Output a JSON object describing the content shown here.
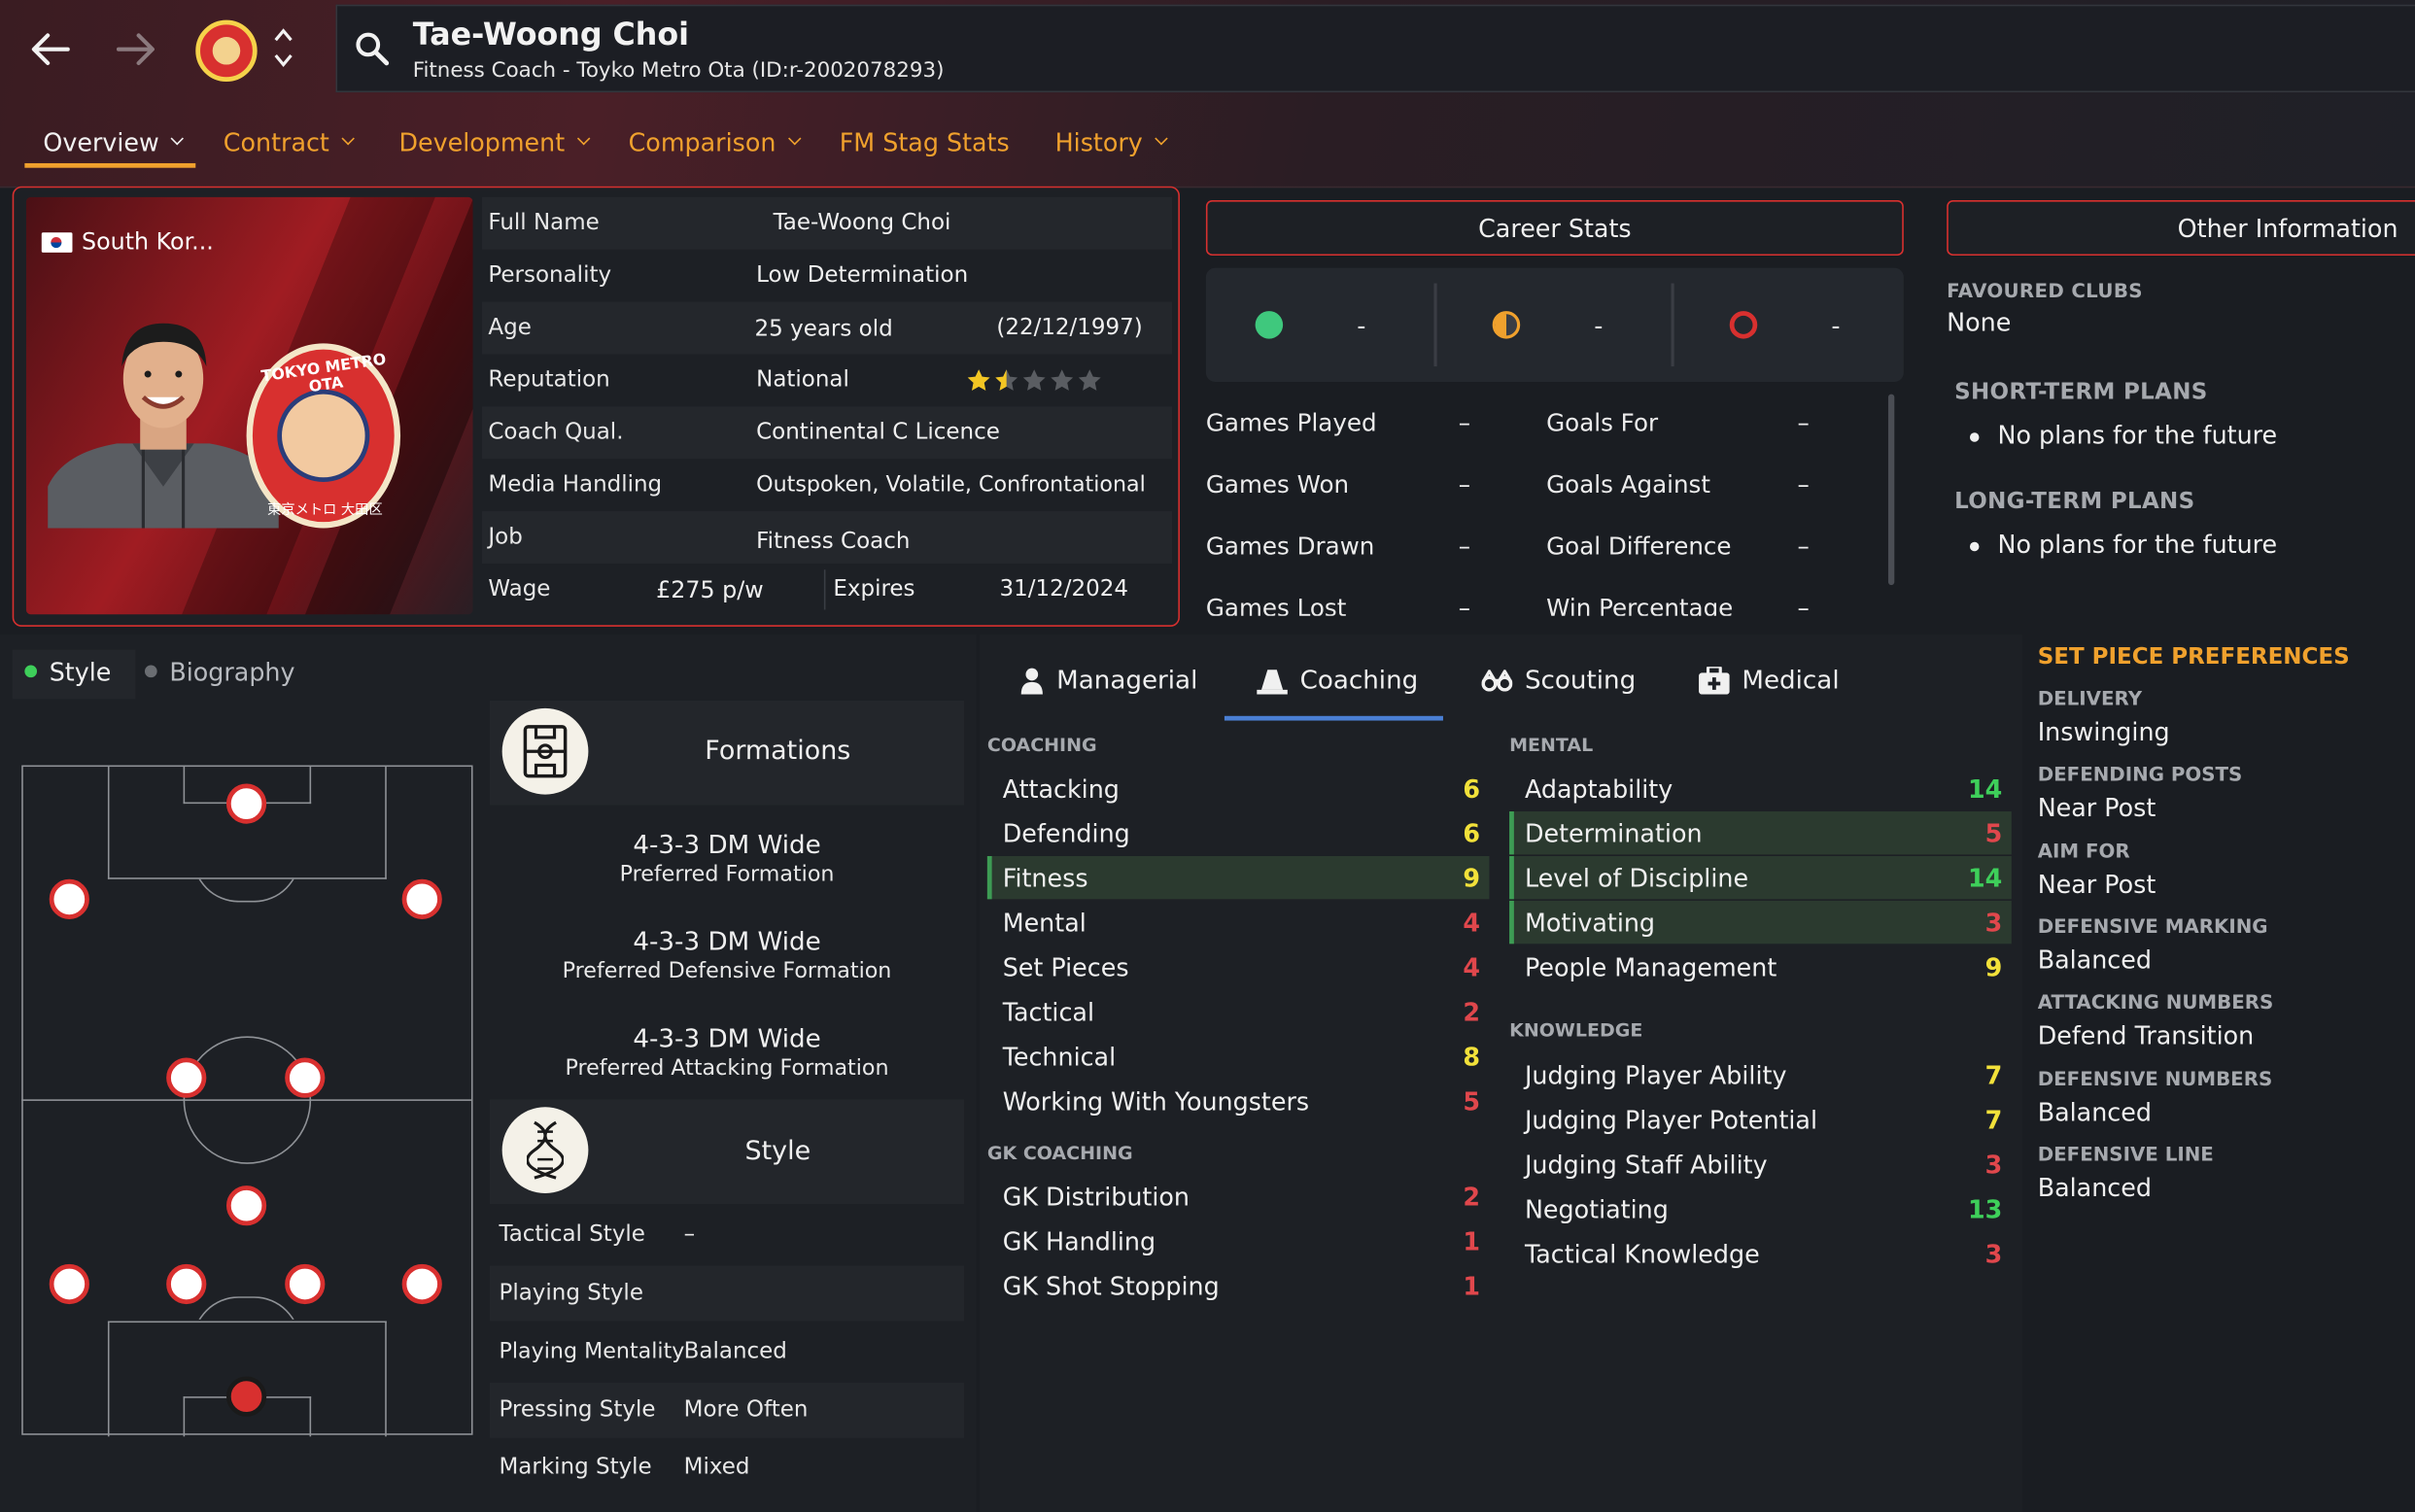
{
  "header": {
    "player_name": "Tae-Woong Choi",
    "subtitle": "Fitness Coach - Toyko Metro Ota (ID:r-2002078293)",
    "tabs": [
      {
        "label": "Overview",
        "has_menu": true
      },
      {
        "label": "Contract",
        "has_menu": true
      },
      {
        "label": "Development",
        "has_menu": true
      },
      {
        "label": "Comparison",
        "has_menu": true
      },
      {
        "label": "FM Stag Stats",
        "has_menu": false
      },
      {
        "label": "History",
        "has_menu": true
      }
    ]
  },
  "colors": {
    "accent": "#f0a12d",
    "red": "#d8302f",
    "green": "#3ecf5a",
    "yellow": "#f2e13a",
    "low": "#e0474c"
  },
  "profile": {
    "nation": "South Kor...",
    "club_badge_text": "TOKYO METRO OTA",
    "club_badge_sub": "東京メトロ 大田区",
    "rows": [
      {
        "label": "Full Name",
        "value": "Tae-Woong Choi"
      },
      {
        "label": "Personality",
        "value": "Low Determination"
      },
      {
        "label": "Age",
        "value": "25 years old",
        "extra": "(22/12/1997)"
      },
      {
        "label": "Reputation",
        "value": "National",
        "stars": 1.5
      },
      {
        "label": "Coach Qual.",
        "value": "Continental C Licence"
      },
      {
        "label": "Media Handling",
        "value": "Outspoken, Volatile, Confrontational"
      },
      {
        "label": "Job",
        "value": "Fitness Coach"
      },
      {
        "label": "Wage",
        "value": "£275 p/w",
        "extra_label": "Expires",
        "extra": "31/12/2024"
      }
    ]
  },
  "career_stats": {
    "title": "Career Stats",
    "icon_values": [
      "-",
      "-",
      "-"
    ],
    "rows": [
      {
        "label": "Games Played",
        "value": "–",
        "label2": "Goals For",
        "value2": "–"
      },
      {
        "label": "Games Won",
        "value": "–",
        "label2": "Goals Against",
        "value2": "–"
      },
      {
        "label": "Games Drawn",
        "value": "–",
        "label2": "Goal Difference",
        "value2": "–"
      },
      {
        "label": "Games Lost",
        "value": "–",
        "label2": "Win Percentage",
        "value2": "–"
      }
    ]
  },
  "other_info": {
    "title": "Other Information",
    "favoured_label": "FAVOURED CLUBS",
    "favoured_value": "None",
    "short_label": "SHORT-TERM PLANS",
    "short_value": "No plans for the future",
    "long_label": "LONG-TERM PLANS",
    "long_value": "No plans for the future"
  },
  "style_panel": {
    "tabs": [
      "Style",
      "Biography"
    ],
    "formations_title": "Formations",
    "formations": [
      {
        "name": "4-3-3 DM Wide",
        "sub": "Preferred Formation"
      },
      {
        "name": "4-3-3 DM Wide",
        "sub": "Preferred Defensive Formation"
      },
      {
        "name": "4-3-3 DM Wide",
        "sub": "Preferred Attacking Formation"
      }
    ],
    "style_title": "Style",
    "style_rows": [
      {
        "label": "Tactical Style",
        "value": "–"
      },
      {
        "label": "Playing Style",
        "value": ""
      },
      {
        "label": "Playing Mentality",
        "value": "Balanced"
      },
      {
        "label": "Pressing Style",
        "value": "More Often"
      },
      {
        "label": "Marking Style",
        "value": "Mixed"
      }
    ]
  },
  "attributes": {
    "tabs": [
      "Managerial",
      "Coaching",
      "Scouting",
      "Medical"
    ],
    "coaching_label": "COACHING",
    "coaching": [
      {
        "name": "Attacking",
        "value": "6",
        "level": "mid"
      },
      {
        "name": "Defending",
        "value": "6",
        "level": "mid"
      },
      {
        "name": "Fitness",
        "value": "9",
        "level": "mid",
        "hl": true
      },
      {
        "name": "Mental",
        "value": "4",
        "level": "low"
      },
      {
        "name": "Set Pieces",
        "value": "4",
        "level": "low"
      },
      {
        "name": "Tactical",
        "value": "2",
        "level": "low"
      },
      {
        "name": "Technical",
        "value": "8",
        "level": "mid"
      },
      {
        "name": "Working With Youngsters",
        "value": "5",
        "level": "low"
      }
    ],
    "gk_label": "GK COACHING",
    "gk": [
      {
        "name": "GK Distribution",
        "value": "2",
        "level": "low"
      },
      {
        "name": "GK Handling",
        "value": "1",
        "level": "low"
      },
      {
        "name": "GK Shot Stopping",
        "value": "1",
        "level": "low"
      }
    ],
    "mental_label": "MENTAL",
    "mental": [
      {
        "name": "Adaptability",
        "value": "14",
        "level": "high"
      },
      {
        "name": "Determination",
        "value": "5",
        "level": "low",
        "hl": true
      },
      {
        "name": "Level of Discipline",
        "value": "14",
        "level": "high",
        "hl": true
      },
      {
        "name": "Motivating",
        "value": "3",
        "level": "low",
        "hl": true
      },
      {
        "name": "People Management",
        "value": "9",
        "level": "mid"
      }
    ],
    "knowledge_label": "KNOWLEDGE",
    "knowledge": [
      {
        "name": "Judging Player Ability",
        "value": "7",
        "level": "mid"
      },
      {
        "name": "Judging Player Potential",
        "value": "7",
        "level": "mid"
      },
      {
        "name": "Judging Staff Ability",
        "value": "3",
        "level": "low"
      },
      {
        "name": "Negotiating",
        "value": "13",
        "level": "high"
      },
      {
        "name": "Tactical Knowledge",
        "value": "3",
        "level": "low"
      }
    ]
  },
  "set_pieces": {
    "title": "SET PIECE PREFERENCES",
    "items": [
      {
        "label": "DELIVERY",
        "value": "Inswinging"
      },
      {
        "label": "DEFENDING POSTS",
        "value": "Near Post"
      },
      {
        "label": "AIM FOR",
        "value": "Near Post"
      },
      {
        "label": "DEFENSIVE MARKING",
        "value": "Balanced"
      },
      {
        "label": "ATTACKING NUMBERS",
        "value": "Defend Transition"
      },
      {
        "label": "DEFENSIVE NUMBERS",
        "value": "Balanced"
      },
      {
        "label": "DEFENSIVE LINE",
        "value": "Balanced"
      }
    ]
  }
}
